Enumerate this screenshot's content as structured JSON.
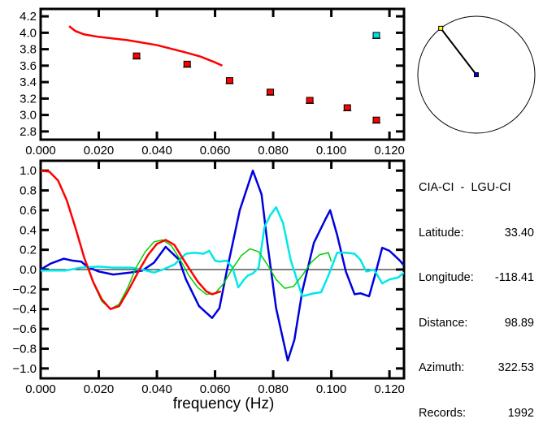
{
  "chart_data": [
    {
      "type": "scatter",
      "title": "",
      "xlabel": "",
      "ylabel": "",
      "xlim": [
        0,
        0.125
      ],
      "ylim": [
        2.7,
        4.29
      ],
      "xticks": [
        "0.000",
        "0.020",
        "0.040",
        "0.060",
        "0.080",
        "0.100",
        "0.120"
      ],
      "yticks": [
        "2.8",
        "3.0",
        "3.2",
        "3.4",
        "3.6",
        "3.8",
        "4.0",
        "4.2"
      ],
      "curve": {
        "name": "model",
        "color": "#ff0000",
        "x": [
          0.0098,
          0.012,
          0.015,
          0.02,
          0.03,
          0.04,
          0.05,
          0.055,
          0.06,
          0.0625
        ],
        "y": [
          4.08,
          4.02,
          3.98,
          3.95,
          3.91,
          3.85,
          3.76,
          3.71,
          3.64,
          3.6
        ]
      },
      "points": [
        {
          "x": 0.033,
          "y": 3.72,
          "color": "#ff0000"
        },
        {
          "x": 0.0504,
          "y": 3.62,
          "color": "#ff0000"
        },
        {
          "x": 0.065,
          "y": 3.42,
          "color": "#ff0000"
        },
        {
          "x": 0.079,
          "y": 3.28,
          "color": "#ff0000"
        },
        {
          "x": 0.0926,
          "y": 3.18,
          "color": "#ff0000"
        },
        {
          "x": 0.1055,
          "y": 3.09,
          "color": "#ff0000"
        },
        {
          "x": 0.1155,
          "y": 2.94,
          "color": "#ff0000"
        },
        {
          "x": 0.1155,
          "y": 3.97,
          "color": "#00e0e0"
        }
      ]
    },
    {
      "type": "line",
      "title": "",
      "xlabel": "frequency (Hz)",
      "ylabel": "",
      "xlim": [
        0,
        0.125
      ],
      "ylim": [
        -1.1,
        1.1
      ],
      "xticks": [
        "0.000",
        "0.020",
        "0.040",
        "0.060",
        "0.080",
        "0.100",
        "0.120"
      ],
      "yticks": [
        "-1.0",
        "-0.8",
        "-0.6",
        "-0.4",
        "-0.2",
        "0.0",
        "0.2",
        "0.4",
        "0.6",
        "0.8",
        "1.0"
      ],
      "series": [
        {
          "name": "blue",
          "color": "#0000e0",
          "x": [
            0,
            0.0034,
            0.008,
            0.011,
            0.014,
            0.016,
            0.02,
            0.025,
            0.031,
            0.035,
            0.039,
            0.043,
            0.0476,
            0.05,
            0.0545,
            0.059,
            0.0615,
            0.064,
            0.0685,
            0.073,
            0.076,
            0.078,
            0.081,
            0.085,
            0.0873,
            0.09,
            0.094,
            0.098,
            0.0996,
            0.102,
            0.105,
            0.108,
            0.11,
            0.113,
            0.115,
            0.1175,
            0.12,
            0.1236,
            0.125
          ],
          "y": [
            0,
            0.06,
            0.11,
            0.09,
            0.08,
            0.03,
            -0.02,
            -0.05,
            -0.03,
            -0.01,
            0.07,
            0.23,
            0.1,
            -0.1,
            -0.37,
            -0.49,
            -0.39,
            -0.02,
            0.6,
            1.0,
            0.76,
            0.27,
            -0.39,
            -0.92,
            -0.71,
            -0.22,
            0.27,
            0.51,
            0.6,
            0.35,
            -0.02,
            -0.25,
            -0.24,
            -0.27,
            -0.06,
            0.22,
            0.19,
            0.09,
            0.04
          ]
        },
        {
          "name": "cyan",
          "color": "#00e8e8",
          "x": [
            0,
            0.0084,
            0.014,
            0.02,
            0.025,
            0.031,
            0.035,
            0.039,
            0.042,
            0.046,
            0.05,
            0.053,
            0.056,
            0.058,
            0.06,
            0.0615,
            0.064,
            0.066,
            0.068,
            0.07,
            0.0713,
            0.073,
            0.075,
            0.077,
            0.079,
            0.081,
            0.0834,
            0.086,
            0.089,
            0.09,
            0.094,
            0.0965,
            0.099,
            0.102,
            0.105,
            0.108,
            0.11,
            0.112,
            0.1147,
            0.1175,
            0.12,
            0.123,
            0.125
          ],
          "y": [
            -0.01,
            -0.01,
            0.02,
            0.03,
            0.02,
            0.02,
            0,
            -0.03,
            0,
            0.05,
            0.16,
            0.17,
            0.16,
            0.19,
            0.09,
            0.08,
            0.09,
            0.02,
            -0.18,
            -0.1,
            -0.06,
            -0.04,
            0.02,
            0.43,
            0.55,
            0.63,
            0.47,
            0.1,
            -0.18,
            -0.27,
            -0.24,
            -0.23,
            -0.06,
            0.17,
            0.17,
            0.16,
            0.1,
            -0.02,
            0,
            -0.14,
            -0.1,
            -0.08,
            -0.03
          ]
        },
        {
          "name": "green",
          "color": "#00d000",
          "x": [
            0,
            0.003,
            0.006,
            0.009,
            0.012,
            0.015,
            0.018,
            0.021,
            0.024,
            0.027,
            0.03,
            0.033,
            0.036,
            0.039,
            0.042,
            0.045,
            0.048,
            0.051,
            0.054,
            0.057,
            0.06,
            0.063,
            0.066,
            0.069,
            0.072,
            0.075,
            0.078,
            0.081,
            0.084,
            0.087,
            0.09,
            0.093,
            0.096,
            0.099,
            0.1
          ],
          "y": [
            1,
            0.99,
            0.9,
            0.7,
            0.42,
            0.12,
            -0.13,
            -0.32,
            -0.4,
            -0.35,
            -0.18,
            0.03,
            0.18,
            0.28,
            0.3,
            0.24,
            0.1,
            -0.06,
            -0.18,
            -0.25,
            -0.24,
            -0.14,
            0.01,
            0.14,
            0.21,
            0.18,
            0.05,
            -0.1,
            -0.19,
            -0.17,
            -0.06,
            0.07,
            0.15,
            0.17,
            0.08
          ]
        },
        {
          "name": "red",
          "color": "#ff0000",
          "x": [
            0,
            0.003,
            0.006,
            0.009,
            0.012,
            0.015,
            0.018,
            0.021,
            0.024,
            0.027,
            0.03,
            0.034,
            0.037,
            0.04,
            0.043,
            0.046,
            0.05,
            0.054,
            0.057,
            0.059,
            0.062
          ],
          "y": [
            1,
            0.99,
            0.9,
            0.7,
            0.42,
            0.12,
            -0.12,
            -0.3,
            -0.4,
            -0.37,
            -0.22,
            0,
            0.15,
            0.26,
            0.3,
            0.25,
            0.06,
            -0.12,
            -0.22,
            -0.25,
            -0.22
          ]
        }
      ]
    }
  ],
  "map": {
    "azimuth_deg": 322.53,
    "station_color": "#ffff00",
    "center_color": "#0000e0"
  },
  "info": {
    "title": "CIA-CI  -  LGU-CI",
    "rows": [
      {
        "label": "Latitude:",
        "value": "33.40"
      },
      {
        "label": "Longitude:",
        "value": "-118.41"
      },
      {
        "label": "Distance:",
        "value": "98.89"
      },
      {
        "label": "Azimuth:",
        "value": "322.53"
      },
      {
        "label": "Records:",
        "value": "1992"
      }
    ]
  }
}
